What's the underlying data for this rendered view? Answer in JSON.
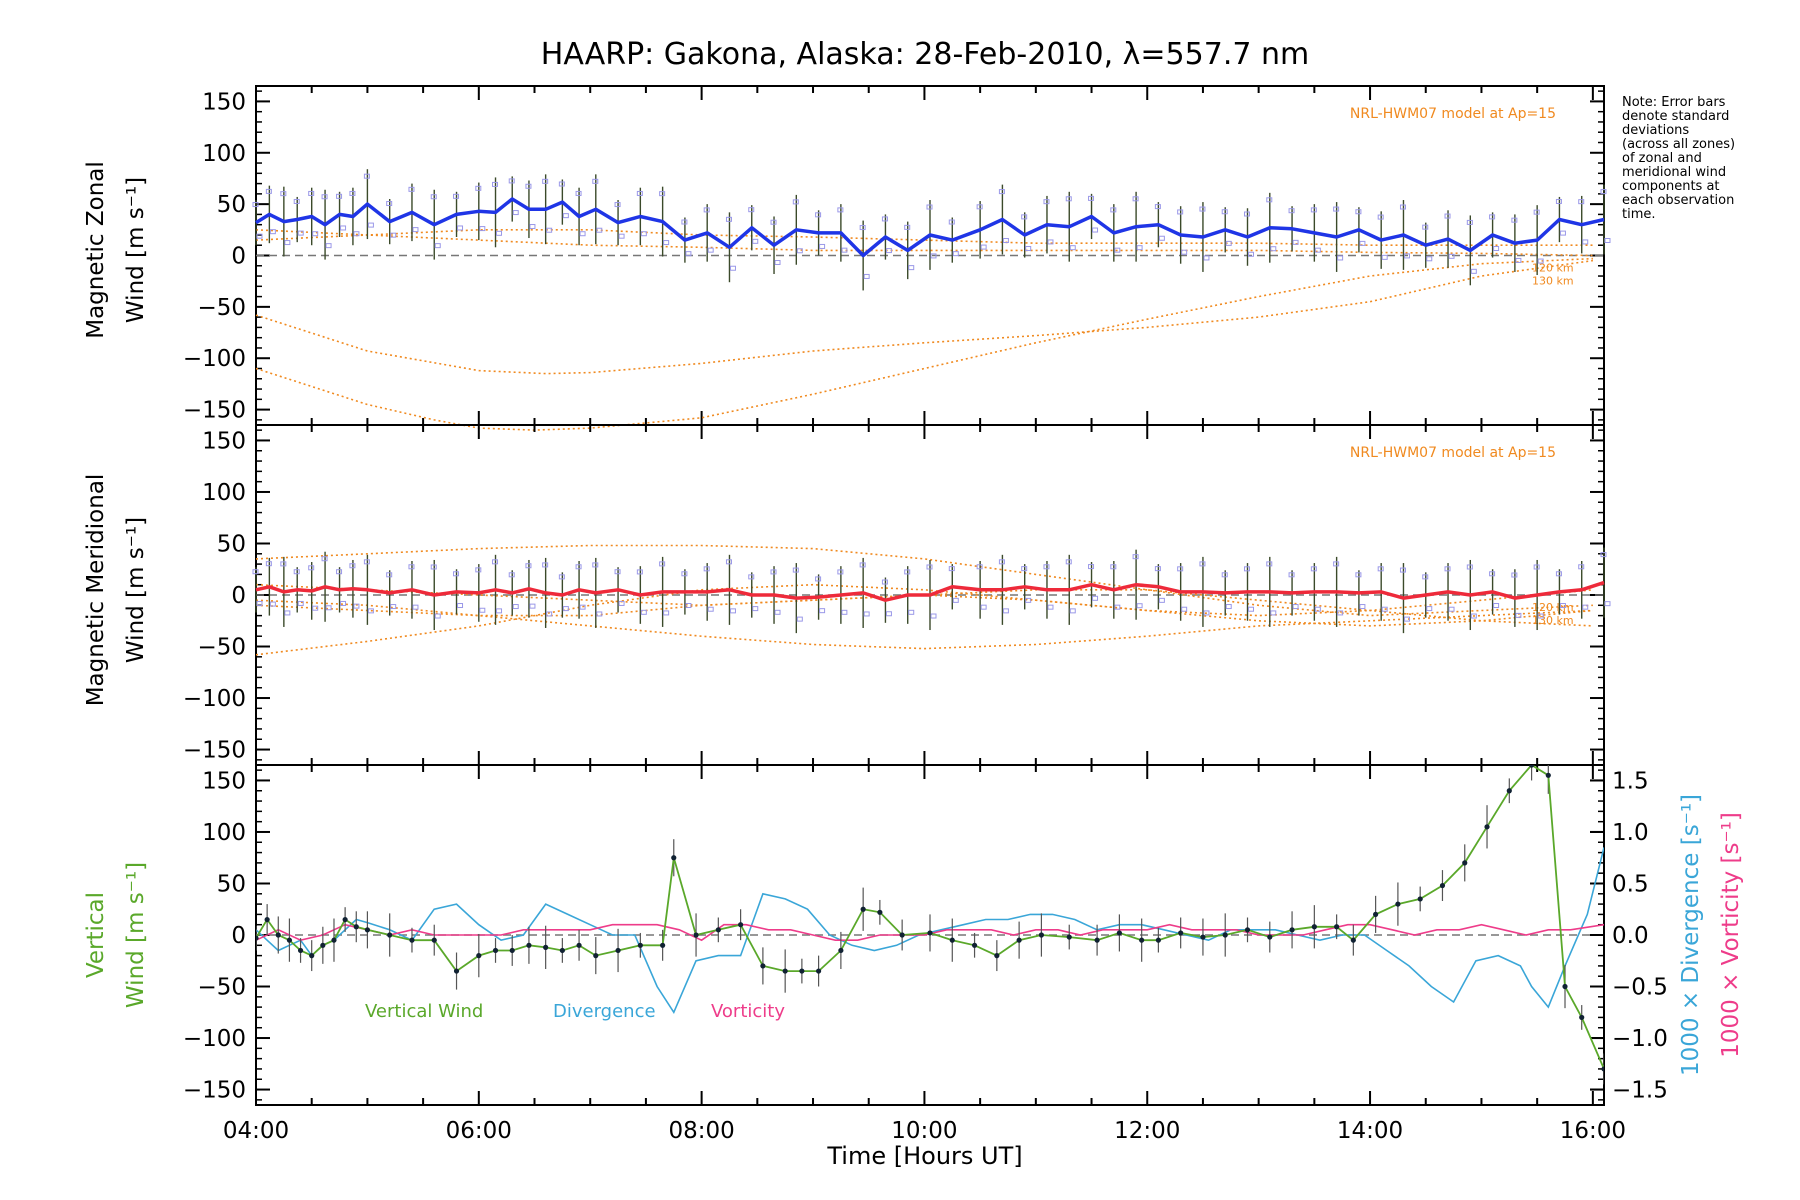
{
  "title": "HAARP: Gakona,  Alaska: 28-Feb-2010, λ=557.7 nm",
  "note_lines": [
    "Note: Error bars",
    "denote standard",
    "deviations",
    "(across all zones)",
    "of zonal and",
    "meridional wind",
    "components at",
    "each observation",
    "time."
  ],
  "colors": {
    "zonal": "#1f35e6",
    "meridional": "#ee2a3a",
    "vertical": "#5aa82a",
    "divergence": "#3aa6d8",
    "vorticity": "#ee3c8a",
    "model": "#f08a20",
    "zone_points": "#9a98e8"
  },
  "chart_data": [
    {
      "type": "line",
      "panel": "zonal",
      "ylabel_line1": "Magnetic Zonal",
      "ylabel_line2": "Wind [m s⁻¹]",
      "ylim": [
        -165,
        165
      ],
      "yticks": [
        150,
        100,
        50,
        0,
        -50,
        -100,
        -150
      ],
      "model_label": "NRL-HWM07 model at Ap=15",
      "model_km_labels": [
        "120 km",
        "130 km"
      ],
      "series": [
        {
          "x": [
            4.0,
            4.12,
            4.25,
            4.37,
            4.5,
            4.62,
            4.75,
            4.87,
            5.0,
            5.2,
            5.4,
            5.6,
            5.8,
            6.0,
            6.15,
            6.3,
            6.45,
            6.6,
            6.75,
            6.9,
            7.05,
            7.25,
            7.45,
            7.65,
            7.85,
            8.05,
            8.25,
            8.45,
            8.65,
            8.85,
            9.05,
            9.25,
            9.45,
            9.65,
            9.85,
            10.05,
            10.25,
            10.5,
            10.7,
            10.9,
            11.1,
            11.3,
            11.5,
            11.7,
            11.9,
            12.1,
            12.3,
            12.5,
            12.7,
            12.9,
            13.1,
            13.3,
            13.5,
            13.7,
            13.9,
            14.1,
            14.3,
            14.5,
            14.7,
            14.9,
            15.1,
            15.3,
            15.5,
            15.7,
            15.9,
            16.1
          ],
          "y": [
            32,
            40,
            33,
            35,
            38,
            30,
            40,
            38,
            50,
            33,
            42,
            30,
            40,
            43,
            42,
            55,
            45,
            45,
            52,
            38,
            45,
            32,
            38,
            33,
            15,
            22,
            8,
            27,
            10,
            25,
            22,
            22,
            0,
            18,
            5,
            20,
            15,
            25,
            35,
            20,
            30,
            28,
            38,
            22,
            28,
            30,
            20,
            18,
            25,
            18,
            27,
            26,
            22,
            18,
            25,
            15,
            20,
            10,
            16,
            5,
            20,
            12,
            15,
            35,
            30,
            35
          ]
        }
      ],
      "model_curves": [
        {
          "name": "120 km",
          "x": [
            4,
            5,
            6,
            6.6,
            7,
            8,
            9,
            10,
            11,
            12,
            13,
            14,
            15,
            16
          ],
          "y": [
            -58,
            -93,
            -112,
            -115,
            -114,
            -105,
            -93,
            -85,
            -78,
            -70,
            -60,
            -45,
            -20,
            -5
          ]
        },
        {
          "name": "130 km",
          "x": [
            4,
            5,
            5.6,
            6,
            6.5,
            7,
            8,
            9,
            10,
            11,
            12,
            13,
            14,
            15,
            16
          ],
          "y": [
            -110,
            -145,
            -160,
            -168,
            -170,
            -168,
            -158,
            -135,
            -110,
            -85,
            -62,
            -40,
            -20,
            -8,
            -3
          ]
        },
        {
          "name": "",
          "x": [
            4,
            5,
            6,
            7,
            8,
            9,
            10,
            11,
            12,
            13,
            14,
            15,
            16
          ],
          "y": [
            15,
            20,
            25,
            25,
            20,
            18,
            15,
            12,
            12,
            12,
            10,
            10,
            10
          ]
        },
        {
          "name": "",
          "x": [
            4,
            5,
            6,
            7,
            8,
            9,
            10,
            11,
            12,
            13,
            14,
            15,
            16
          ],
          "y": [
            25,
            20,
            15,
            10,
            8,
            5,
            5,
            5,
            5,
            5,
            3,
            2,
            0
          ]
        }
      ]
    },
    {
      "type": "line",
      "panel": "meridional",
      "ylabel_line1": "Magnetic Meridional",
      "ylabel_line2": "Wind [m s⁻¹]",
      "ylim": [
        -165,
        165
      ],
      "yticks": [
        150,
        100,
        50,
        0,
        -50,
        -100,
        -150
      ],
      "model_label": "NRL-HWM07 model at Ap=15",
      "model_km_labels": [
        "120 km",
        "130 km"
      ],
      "series": [
        {
          "x": [
            4.0,
            4.12,
            4.25,
            4.37,
            4.5,
            4.62,
            4.75,
            4.87,
            5.0,
            5.2,
            5.4,
            5.6,
            5.8,
            6.0,
            6.15,
            6.3,
            6.45,
            6.6,
            6.75,
            6.9,
            7.05,
            7.25,
            7.45,
            7.65,
            7.85,
            8.05,
            8.25,
            8.45,
            8.65,
            8.85,
            9.05,
            9.25,
            9.45,
            9.65,
            9.85,
            10.05,
            10.25,
            10.5,
            10.7,
            10.9,
            11.1,
            11.3,
            11.5,
            11.7,
            11.9,
            12.1,
            12.3,
            12.5,
            12.7,
            12.9,
            13.1,
            13.3,
            13.5,
            13.7,
            13.9,
            14.1,
            14.3,
            14.5,
            14.7,
            14.9,
            15.1,
            15.3,
            15.5,
            15.7,
            15.9,
            16.1
          ],
          "y": [
            5,
            8,
            3,
            5,
            4,
            8,
            5,
            6,
            5,
            2,
            5,
            0,
            3,
            2,
            5,
            2,
            6,
            2,
            0,
            5,
            2,
            5,
            0,
            3,
            3,
            3,
            5,
            0,
            0,
            -3,
            -2,
            0,
            2,
            -5,
            0,
            0,
            8,
            5,
            5,
            8,
            5,
            5,
            10,
            5,
            10,
            8,
            3,
            3,
            2,
            3,
            3,
            2,
            3,
            3,
            2,
            3,
            -3,
            0,
            3,
            0,
            3,
            -3,
            0,
            3,
            5,
            12
          ]
        }
      ],
      "model_curves": [
        {
          "name": "",
          "x": [
            4,
            5,
            6,
            7,
            8,
            9,
            10,
            11,
            12,
            13,
            14,
            15,
            16
          ],
          "y": [
            35,
            40,
            45,
            48,
            48,
            45,
            35,
            20,
            5,
            -10,
            -20,
            -15,
            -10
          ]
        },
        {
          "name": "",
          "x": [
            4,
            5,
            6,
            7,
            8,
            9,
            10,
            11,
            12,
            13,
            14,
            15,
            16
          ],
          "y": [
            -58,
            -45,
            -30,
            -10,
            5,
            10,
            5,
            -5,
            -15,
            -20,
            -15,
            -5,
            5
          ]
        },
        {
          "name": "",
          "x": [
            4,
            5,
            6,
            7,
            8,
            9,
            10,
            11,
            12,
            13,
            14,
            15,
            16
          ],
          "y": [
            -5,
            -10,
            -20,
            -30,
            -40,
            -48,
            -52,
            -48,
            -40,
            -30,
            -25,
            -20,
            -15
          ]
        },
        {
          "name": "120 km",
          "x": [
            4,
            5,
            6,
            7,
            8,
            9,
            10,
            11,
            12,
            13,
            14,
            15,
            16
          ],
          "y": [
            10,
            5,
            0,
            -5,
            -10,
            -5,
            0,
            5,
            5,
            -5,
            -15,
            -25,
            -30
          ]
        },
        {
          "name": "130 km",
          "x": [
            4,
            5,
            6,
            7,
            8,
            9,
            10,
            11,
            12,
            13,
            14,
            15,
            16
          ],
          "y": [
            -10,
            -15,
            -20,
            -20,
            -10,
            -5,
            0,
            -5,
            -15,
            -25,
            -30,
            -25,
            -15
          ]
        }
      ]
    },
    {
      "type": "line",
      "panel": "vertical",
      "ylabel_line1": "Vertical",
      "ylabel_line2": "Wind [m s⁻¹]",
      "ylabel_right1": "1000 × Divergence [s⁻¹]",
      "ylabel_right2": "1000 × Vorticity [s⁻¹]",
      "ylim": [
        -165,
        165
      ],
      "y2lim": [
        -1.65,
        1.65
      ],
      "yticks": [
        150,
        100,
        50,
        0,
        -50,
        -100,
        -150
      ],
      "y2ticks": [
        "1.5",
        "1.0",
        "0.5",
        "0.0",
        "−0.5",
        "−1.0",
        "−1.5"
      ],
      "legend": [
        "Vertical Wind",
        "Divergence",
        "Vorticity"
      ],
      "series": [
        {
          "name": "Vertical Wind",
          "x": [
            4.0,
            4.1,
            4.2,
            4.3,
            4.4,
            4.5,
            4.6,
            4.7,
            4.8,
            4.9,
            5.0,
            5.2,
            5.4,
            5.6,
            5.8,
            6.0,
            6.15,
            6.3,
            6.45,
            6.6,
            6.75,
            6.9,
            7.05,
            7.25,
            7.45,
            7.65,
            7.75,
            7.95,
            8.15,
            8.35,
            8.55,
            8.75,
            8.9,
            9.05,
            9.25,
            9.45,
            9.6,
            9.8,
            10.05,
            10.25,
            10.45,
            10.65,
            10.85,
            11.05,
            11.3,
            11.55,
            11.75,
            11.95,
            12.1,
            12.3,
            12.5,
            12.7,
            12.9,
            13.1,
            13.3,
            13.5,
            13.7,
            13.85,
            14.05,
            14.25,
            14.45,
            14.65,
            14.85,
            15.05,
            15.25,
            15.45,
            15.6,
            15.75,
            15.9,
            16.1
          ],
          "y": [
            -3,
            15,
            0,
            -5,
            -15,
            -20,
            -10,
            -5,
            15,
            8,
            5,
            0,
            -5,
            -5,
            -35,
            -20,
            -15,
            -15,
            -10,
            -12,
            -15,
            -10,
            -20,
            -15,
            -10,
            -10,
            75,
            0,
            5,
            10,
            -30,
            -35,
            -35,
            -35,
            -15,
            25,
            22,
            0,
            2,
            -5,
            -10,
            -20,
            -5,
            0,
            -2,
            -5,
            2,
            -5,
            -5,
            2,
            -2,
            0,
            5,
            -2,
            5,
            8,
            8,
            -5,
            20,
            30,
            35,
            48,
            70,
            105,
            140,
            165,
            155,
            -50,
            -80,
            -130
          ]
        },
        {
          "name": "Divergence",
          "x": [
            4.0,
            4.1,
            4.2,
            4.3,
            4.4,
            4.5,
            4.6,
            4.7,
            4.8,
            4.9,
            5.0,
            5.2,
            5.4,
            5.6,
            5.8,
            6.0,
            6.2,
            6.4,
            6.6,
            6.8,
            7.0,
            7.2,
            7.4,
            7.6,
            7.75,
            7.95,
            8.15,
            8.35,
            8.55,
            8.75,
            8.95,
            9.15,
            9.35,
            9.55,
            9.75,
            9.95,
            10.15,
            10.35,
            10.55,
            10.75,
            10.95,
            11.15,
            11.35,
            11.55,
            11.75,
            11.95,
            12.15,
            12.35,
            12.55,
            12.75,
            12.95,
            13.15,
            13.35,
            13.55,
            13.75,
            13.95,
            14.15,
            14.35,
            14.55,
            14.75,
            14.95,
            15.15,
            15.35,
            15.45,
            15.6,
            15.75,
            15.85,
            15.95,
            16.1
          ],
          "y": [
            0.05,
            -0.05,
            -0.15,
            -0.1,
            -0.05,
            -0.2,
            -0.1,
            -0.05,
            0.05,
            0.15,
            0.12,
            0.05,
            -0.05,
            0.25,
            0.3,
            0.1,
            -0.05,
            0.0,
            0.3,
            0.2,
            0.1,
            0.0,
            0.0,
            -0.5,
            -0.75,
            -0.25,
            -0.2,
            -0.2,
            0.4,
            0.35,
            0.25,
            0.0,
            -0.1,
            -0.15,
            -0.1,
            0.0,
            0.05,
            0.1,
            0.15,
            0.15,
            0.2,
            0.2,
            0.15,
            0.05,
            0.1,
            0.1,
            0.05,
            0.0,
            -0.05,
            0.05,
            0.05,
            0.05,
            0.0,
            -0.05,
            0.0,
            0.0,
            -0.15,
            -0.3,
            -0.5,
            -0.65,
            -0.25,
            -0.2,
            -0.3,
            -0.5,
            -0.7,
            -0.3,
            -0.05,
            0.2,
            0.85
          ]
        },
        {
          "name": "Vorticity",
          "x": [
            4.0,
            4.2,
            4.4,
            4.6,
            4.8,
            5.0,
            5.2,
            5.4,
            5.6,
            5.8,
            6.0,
            6.2,
            6.4,
            6.6,
            6.8,
            7.0,
            7.2,
            7.4,
            7.6,
            7.8,
            8.0,
            8.2,
            8.4,
            8.6,
            8.8,
            9.0,
            9.2,
            9.4,
            9.6,
            9.8,
            10.0,
            10.2,
            10.4,
            10.6,
            10.8,
            11.0,
            11.2,
            11.4,
            11.6,
            11.8,
            12.0,
            12.2,
            12.4,
            12.6,
            12.8,
            13.0,
            13.2,
            13.4,
            13.6,
            13.8,
            14.0,
            14.2,
            14.4,
            14.6,
            14.8,
            15.0,
            15.2,
            15.4,
            15.6,
            15.8,
            16.1
          ],
          "y": [
            -0.05,
            0.05,
            -0.05,
            0.0,
            0.1,
            0.05,
            0.0,
            0.05,
            0.0,
            0.0,
            0.0,
            0.0,
            0.05,
            0.05,
            0.05,
            0.05,
            0.1,
            0.1,
            0.1,
            0.05,
            -0.05,
            0.1,
            0.1,
            0.05,
            0.05,
            0.0,
            -0.05,
            -0.05,
            0.0,
            0.0,
            0.0,
            0.05,
            0.05,
            0.05,
            0.0,
            0.05,
            0.05,
            0.0,
            0.05,
            0.05,
            0.05,
            0.1,
            0.05,
            0.05,
            0.05,
            0.0,
            0.0,
            0.0,
            0.05,
            0.1,
            0.1,
            0.05,
            0.0,
            0.05,
            0.05,
            0.1,
            0.05,
            0.0,
            0.05,
            0.05,
            0.1
          ]
        }
      ]
    }
  ],
  "x_axis": {
    "label": "Time [Hours UT]",
    "ticks": [
      "04:00",
      "06:00",
      "08:00",
      "10:00",
      "12:00",
      "14:00",
      "16:00"
    ],
    "xlim": [
      4.0,
      16.1
    ]
  }
}
